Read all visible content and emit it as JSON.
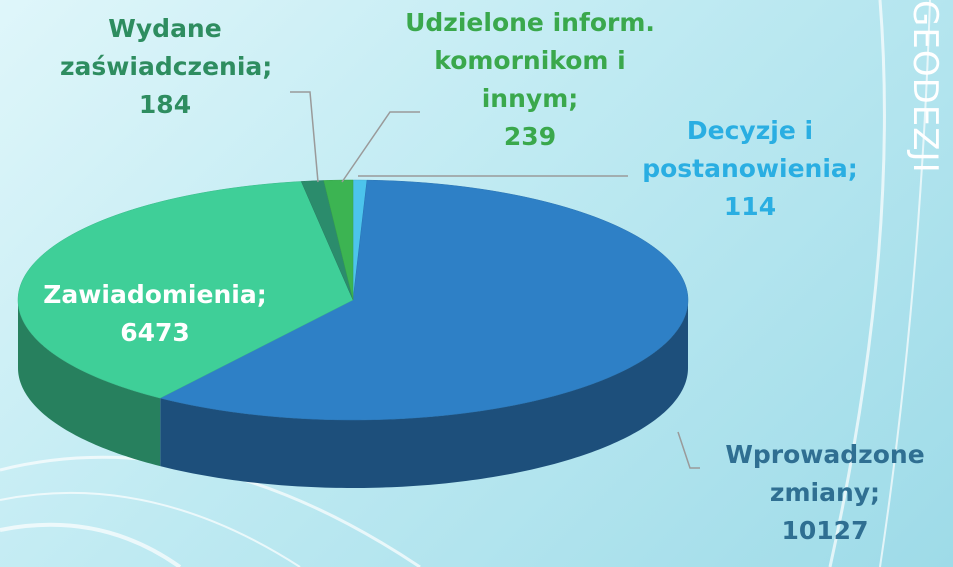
{
  "chart_data": {
    "type": "pie",
    "categories": [
      "Decyzje i postanowienia;",
      "Wprowadzone zmiany;",
      "Zawiadomienia;",
      "Wydane zaświadczenia;",
      "Udzielone inform. komornikom i innym;"
    ],
    "values": [
      114,
      10127,
      6473,
      184,
      239
    ],
    "colors": [
      "#4cc4ec",
      "#2e80c6",
      "#3fcf98",
      "#2b8c6c",
      "#3cb452"
    ],
    "label_colors": [
      "#2aaee2",
      "#2f6f92",
      "#ffffff",
      "#2e8d60",
      "#3aa84c"
    ]
  },
  "side_title": "GEODEZJI"
}
